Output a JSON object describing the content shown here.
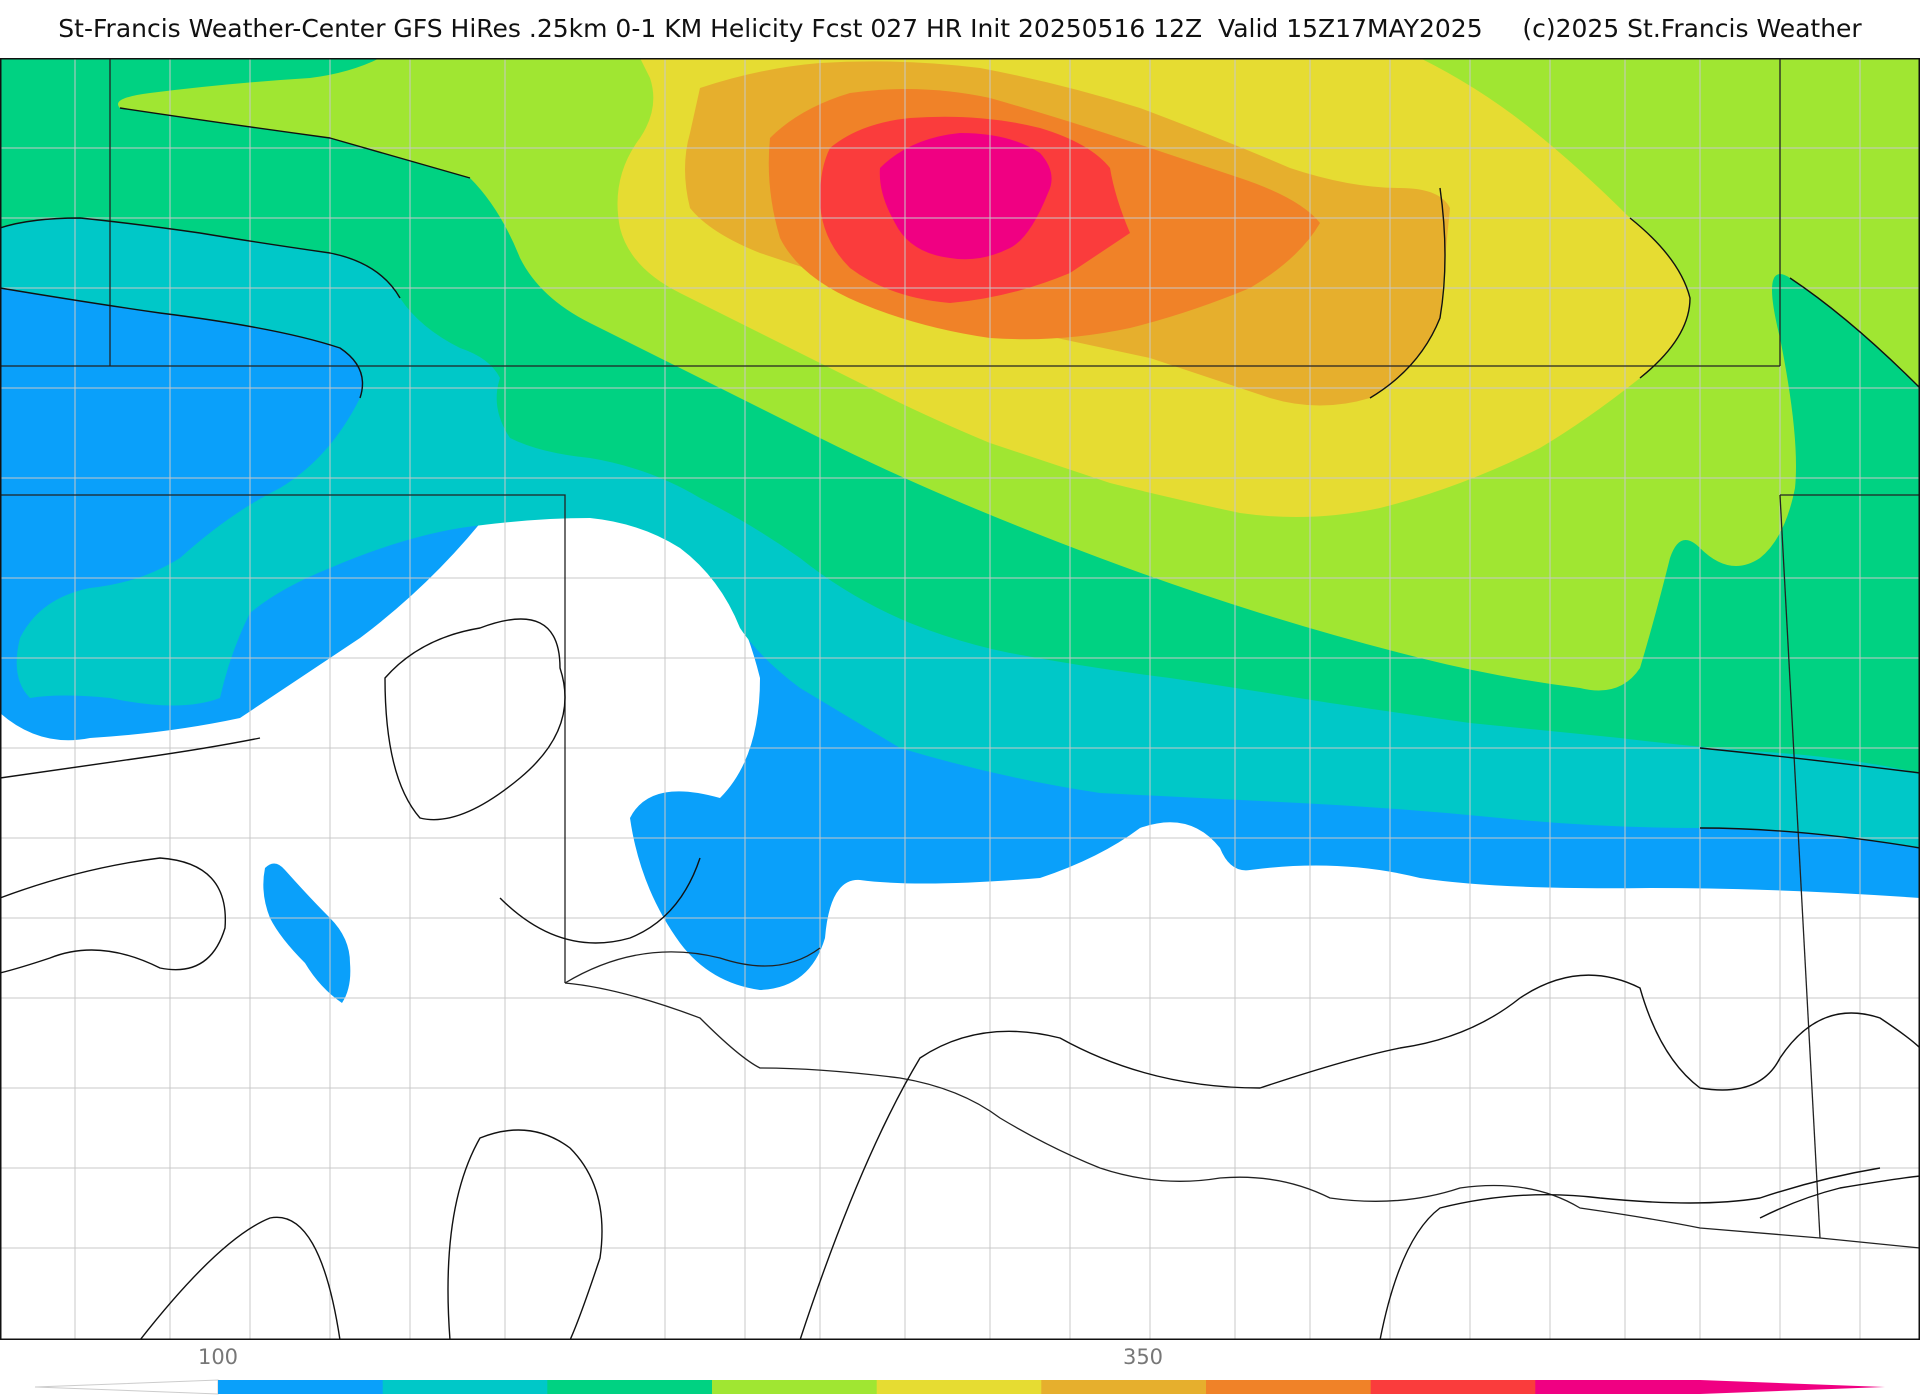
{
  "header": {
    "title": "St-Francis Weather-Center GFS HiRes .25km 0-1 KM Helicity Fcst 027 HR Init 20250516 12Z  Valid 15Z17MAY2025     (c)2025 St.Francis Weather"
  },
  "legend": {
    "tick_labels": [
      "100",
      "350"
    ],
    "colors": [
      "#0aa0fa",
      "#00c8c8",
      "#00d282",
      "#a0e632",
      "#e6dc32",
      "#e6af2d",
      "#f08228",
      "#fa3c3c",
      "#f00082"
    ]
  },
  "map": {
    "background": "#ffffff"
  }
}
